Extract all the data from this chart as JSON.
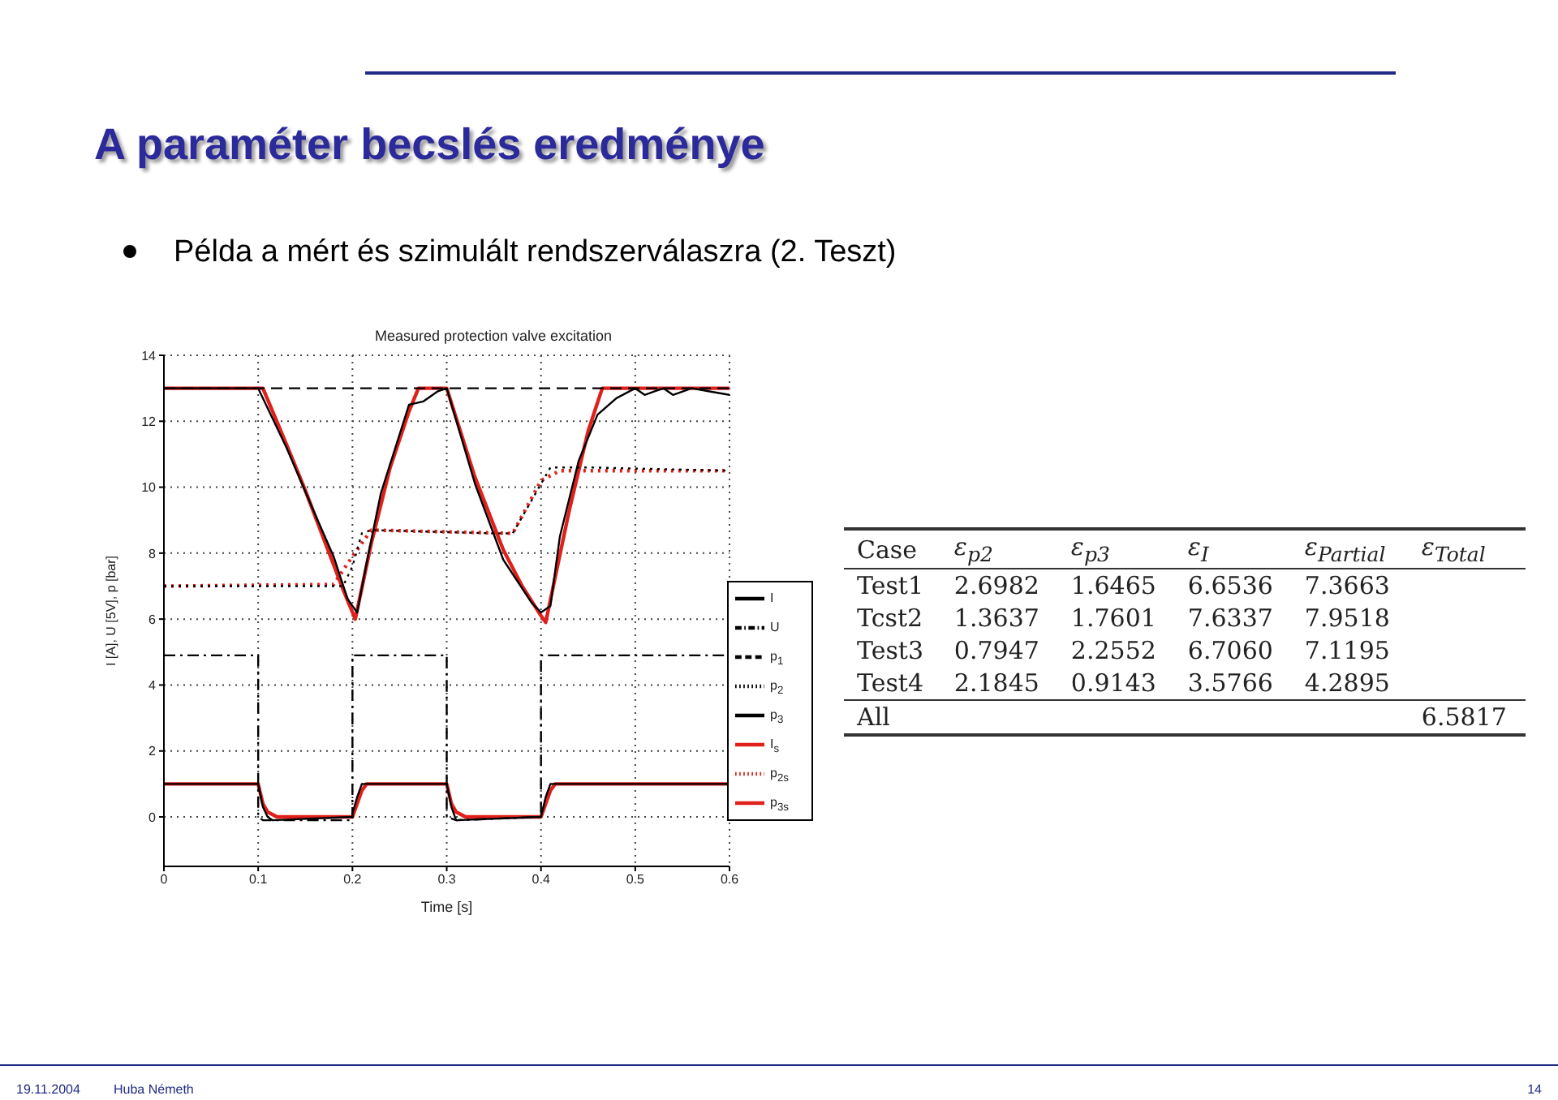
{
  "chart_data": [
    {
      "type": "other",
      "title": "A paraméter becslés eredménye",
      "subtitle": "Példa a mért és szimulált rendszerválaszra (2. Teszt)",
      "annotations": [
        "19.11.2004",
        "Huba Németh",
        "14"
      ]
    },
    {
      "type": "line",
      "title": "Measured protection valve excitation",
      "xlabel": "Time [s]",
      "ylabel": "I [A], U [5V], p [bar]",
      "xlim": [
        0,
        0.6
      ],
      "xticks": [
        0,
        0.1,
        0.2,
        0.3,
        0.4,
        0.5,
        0.6
      ],
      "ylim": [
        -1.5,
        14
      ],
      "yticks": [
        0,
        2,
        4,
        6,
        8,
        10,
        12,
        14
      ],
      "grid": true,
      "legend": "bottom right",
      "marker": "none",
      "series": [
        {
          "name": "I",
          "color": "#000000",
          "line_style": "solid",
          "x": [
            0,
            0.1,
            0.105,
            0.11,
            0.115,
            0.2,
            0.2,
            0.205,
            0.21,
            0.3,
            0.305,
            0.31,
            0.4,
            0.405,
            0.41,
            0.6
          ],
          "values": [
            1,
            1,
            0.3,
            0,
            -0.1,
            0,
            0.1,
            0.6,
            1,
            1,
            0.3,
            -0.1,
            0,
            0.6,
            1,
            1
          ]
        },
        {
          "name": "U",
          "color": "#000000",
          "line_style": "dashdot",
          "x": [
            0,
            0.1,
            0.1,
            0.105,
            0.2,
            0.2,
            0.3,
            0.3,
            0.31,
            0.4,
            0.4,
            0.6
          ],
          "values": [
            4.9,
            4.9,
            0,
            -0.1,
            -0.1,
            4.9,
            4.9,
            0,
            -0.1,
            0,
            4.9,
            4.9
          ]
        },
        {
          "name": "p$_{1}$",
          "color": "#000000",
          "line_style": "dashed",
          "x": [
            0,
            0.1,
            0.12,
            0.3,
            0.45,
            0.6
          ],
          "values": [
            13,
            13,
            13,
            13,
            13,
            13
          ]
        },
        {
          "name": "p$_{2}$",
          "color": "#000000",
          "line_style": "dotted",
          "x": [
            0,
            0.19,
            0.2,
            0.21,
            0.22,
            0.35,
            0.37,
            0.39,
            0.41,
            0.45,
            0.6
          ],
          "values": [
            7,
            7,
            7.6,
            8.6,
            8.7,
            8.6,
            8.6,
            9.6,
            10.6,
            10.6,
            10.5
          ]
        },
        {
          "name": "p$_{3}$",
          "color": "#000000",
          "line_style": "solid",
          "x": [
            0,
            0.1,
            0.13,
            0.16,
            0.18,
            0.195,
            0.2,
            0.205,
            0.215,
            0.23,
            0.25,
            0.26,
            0.275,
            0.29,
            0.3,
            0.33,
            0.36,
            0.39,
            0.4,
            0.41,
            0.42,
            0.44,
            0.46,
            0.48,
            0.5,
            0.51,
            0.52,
            0.53,
            0.54,
            0.56,
            0.58,
            0.6
          ],
          "values": [
            13,
            13,
            11.2,
            9.2,
            7.9,
            6.6,
            6.4,
            6.2,
            7.7,
            9.8,
            11.6,
            12.5,
            12.6,
            12.9,
            13,
            10.1,
            7.8,
            6.5,
            6.2,
            6.4,
            8.5,
            10.8,
            12.2,
            12.7,
            13,
            12.8,
            12.9,
            13,
            12.8,
            13,
            12.9,
            12.8
          ]
        },
        {
          "name": "I$_{s}$",
          "color": "#e0201b",
          "line_style": "solid",
          "x": [
            0,
            0.1,
            0.105,
            0.11,
            0.12,
            0.2,
            0.21,
            0.215,
            0.3,
            0.305,
            0.31,
            0.32,
            0.4,
            0.41,
            0.415,
            0.6
          ],
          "values": [
            1,
            1,
            0.4,
            0.15,
            0,
            0,
            0.8,
            1,
            1,
            0.4,
            0.15,
            0,
            0,
            0.8,
            1,
            1
          ]
        },
        {
          "name": "p$_{2s}$",
          "color": "#e0201b",
          "line_style": "dotted",
          "x": [
            0,
            0.18,
            0.2,
            0.22,
            0.37,
            0.4,
            0.42,
            0.6
          ],
          "values": [
            7,
            7.05,
            7.9,
            8.7,
            8.6,
            10.2,
            10.5,
            10.5
          ]
        },
        {
          "name": "p$_{3s}$",
          "color": "#e0201b",
          "line_style": "solid",
          "x": [
            0,
            0.105,
            0.13,
            0.15,
            0.17,
            0.19,
            0.203,
            0.22,
            0.24,
            0.26,
            0.27,
            0.3,
            0.33,
            0.36,
            0.38,
            0.4,
            0.405,
            0.43,
            0.45,
            0.465,
            0.6
          ],
          "values": [
            13,
            13,
            11.3,
            9.9,
            8.4,
            6.9,
            6,
            8.3,
            10.6,
            12.3,
            13,
            13,
            10.3,
            8.1,
            7,
            6.1,
            5.9,
            9.3,
            11.7,
            13,
            13
          ]
        }
      ]
    },
    {
      "type": "other",
      "categories": [
        "Case",
        "ε$_{p2}$",
        "ε$_{p3}$",
        "ε$_{I}$",
        "ε$_{Partial}$",
        "ε$_{Total}$"
      ],
      "y_categories": [
        "Test1",
        "Tcst2",
        "Test3",
        "Test4",
        "All"
      ],
      "cell_labels": [
        [
          "2.6982",
          "1.6465",
          "6.6536",
          "7.3663",
          null
        ],
        [
          "1.3637",
          "1.7601",
          "7.6337",
          "7.9518",
          null
        ],
        [
          "0.7947",
          "2.2552",
          "6.7060",
          "7.1195",
          null
        ],
        [
          "2.1845",
          "0.9143",
          "3.5766",
          "4.2895",
          null
        ],
        [
          null,
          null,
          null,
          null,
          "6.5817"
        ]
      ]
    }
  ]
}
